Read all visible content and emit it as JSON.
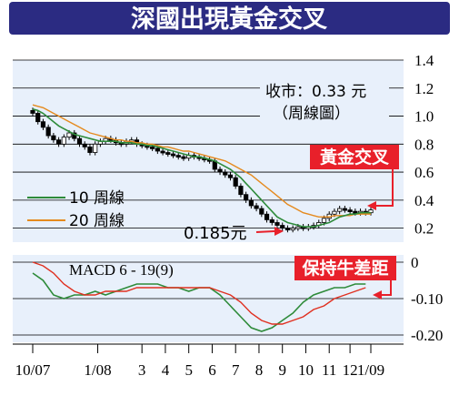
{
  "title": "深國出現黃金交叉",
  "price_note": {
    "line1": "收市：0.33 元",
    "line2": "（周線圖）"
  },
  "low_note": "0.185元",
  "callout_cross": "黃金交叉",
  "callout_macd": "保持牛差距",
  "colors": {
    "title_bg": "#2b2b82",
    "panel_bg": "#e8f0fb",
    "ma10": "#2e8b3a",
    "ma20": "#e58a1e",
    "macd_line": "#2e8b3a",
    "signal_line": "#e03020",
    "callout_bg": "#e8202a",
    "arrow": "#e8202a"
  },
  "chart_data": [
    {
      "type": "line",
      "name": "price-panel",
      "candles": "weekly",
      "yticks": [
        "1.4",
        "1.2",
        "1.0",
        "0.8",
        "0.6",
        "0.4",
        "0.2"
      ],
      "ylim": [
        0.1,
        1.4
      ],
      "xticks": [
        "10/07",
        "1/08",
        "3",
        "4",
        "5",
        "6",
        "7",
        "8",
        "9",
        "10",
        "11",
        "12",
        "1/09"
      ],
      "legend": [
        "10 周線",
        "20 周線"
      ],
      "legend_placement": "bottom-left",
      "x": [
        0,
        1,
        2,
        3,
        4,
        5,
        6,
        7,
        8,
        9,
        10,
        11,
        12,
        13,
        14,
        15,
        16,
        17,
        18,
        19,
        20,
        21,
        22,
        23,
        24,
        25,
        26,
        27,
        28,
        29,
        30,
        31,
        32,
        33,
        34,
        35,
        36,
        37,
        38,
        39,
        40,
        41,
        42,
        43,
        44,
        45,
        46,
        47,
        48,
        49,
        50,
        51,
        52,
        53,
        54,
        55,
        56,
        57,
        58,
        59,
        60,
        61,
        62,
        63,
        64,
        65
      ],
      "close": [
        1.02,
        0.96,
        0.92,
        0.86,
        0.83,
        0.8,
        0.85,
        0.88,
        0.84,
        0.8,
        0.78,
        0.74,
        0.8,
        0.82,
        0.84,
        0.83,
        0.81,
        0.8,
        0.82,
        0.83,
        0.8,
        0.79,
        0.78,
        0.77,
        0.75,
        0.74,
        0.73,
        0.72,
        0.71,
        0.7,
        0.72,
        0.71,
        0.7,
        0.69,
        0.68,
        0.62,
        0.6,
        0.58,
        0.56,
        0.5,
        0.44,
        0.4,
        0.36,
        0.34,
        0.3,
        0.26,
        0.24,
        0.22,
        0.2,
        0.19,
        0.2,
        0.21,
        0.2,
        0.21,
        0.22,
        0.24,
        0.27,
        0.3,
        0.32,
        0.34,
        0.33,
        0.32,
        0.31,
        0.32,
        0.31,
        0.33
      ],
      "ma10": [
        1.05,
        1.04,
        1.02,
        0.99,
        0.96,
        0.93,
        0.91,
        0.89,
        0.87,
        0.86,
        0.85,
        0.84,
        0.83,
        0.82,
        0.82,
        0.82,
        0.82,
        0.81,
        0.81,
        0.81,
        0.8,
        0.8,
        0.79,
        0.79,
        0.78,
        0.77,
        0.76,
        0.75,
        0.74,
        0.73,
        0.72,
        0.71,
        0.71,
        0.7,
        0.69,
        0.68,
        0.66,
        0.64,
        0.62,
        0.59,
        0.56,
        0.52,
        0.48,
        0.44,
        0.4,
        0.36,
        0.32,
        0.28,
        0.26,
        0.24,
        0.23,
        0.22,
        0.21,
        0.21,
        0.21,
        0.22,
        0.23,
        0.24,
        0.26,
        0.28,
        0.29,
        0.3,
        0.3,
        0.31,
        0.31,
        0.31
      ],
      "ma20": [
        1.08,
        1.07,
        1.06,
        1.04,
        1.02,
        1.0,
        0.98,
        0.96,
        0.94,
        0.92,
        0.9,
        0.88,
        0.87,
        0.86,
        0.85,
        0.84,
        0.83,
        0.83,
        0.82,
        0.82,
        0.81,
        0.81,
        0.8,
        0.8,
        0.79,
        0.78,
        0.78,
        0.77,
        0.76,
        0.75,
        0.75,
        0.74,
        0.73,
        0.72,
        0.71,
        0.7,
        0.69,
        0.68,
        0.66,
        0.64,
        0.62,
        0.6,
        0.58,
        0.55,
        0.52,
        0.49,
        0.46,
        0.43,
        0.4,
        0.37,
        0.35,
        0.33,
        0.31,
        0.3,
        0.29,
        0.28,
        0.28,
        0.28,
        0.29,
        0.29,
        0.29,
        0.29,
        0.3,
        0.3,
        0.3,
        0.3
      ]
    },
    {
      "type": "line",
      "name": "macd-panel",
      "title": "MACD 6 - 19(9)",
      "yticks": [
        "0",
        "-0.10",
        "-0.20"
      ],
      "ylim": [
        -0.22,
        0.02
      ],
      "x": [
        0,
        2,
        4,
        6,
        8,
        10,
        12,
        14,
        16,
        18,
        20,
        22,
        24,
        26,
        28,
        30,
        32,
        34,
        36,
        38,
        40,
        42,
        44,
        46,
        48,
        50,
        52,
        54,
        56,
        58,
        60,
        62,
        64
      ],
      "macd": [
        -0.03,
        -0.05,
        -0.09,
        -0.1,
        -0.09,
        -0.09,
        -0.08,
        -0.09,
        -0.08,
        -0.07,
        -0.06,
        -0.06,
        -0.06,
        -0.07,
        -0.07,
        -0.08,
        -0.07,
        -0.07,
        -0.09,
        -0.12,
        -0.15,
        -0.18,
        -0.19,
        -0.18,
        -0.16,
        -0.14,
        -0.11,
        -0.09,
        -0.08,
        -0.07,
        -0.07,
        -0.06,
        -0.06
      ],
      "signal": [
        0.0,
        -0.01,
        -0.03,
        -0.06,
        -0.08,
        -0.09,
        -0.09,
        -0.08,
        -0.08,
        -0.08,
        -0.07,
        -0.07,
        -0.07,
        -0.07,
        -0.07,
        -0.07,
        -0.07,
        -0.07,
        -0.08,
        -0.09,
        -0.11,
        -0.14,
        -0.16,
        -0.17,
        -0.17,
        -0.16,
        -0.15,
        -0.13,
        -0.12,
        -0.1,
        -0.09,
        -0.08,
        -0.07
      ]
    }
  ]
}
